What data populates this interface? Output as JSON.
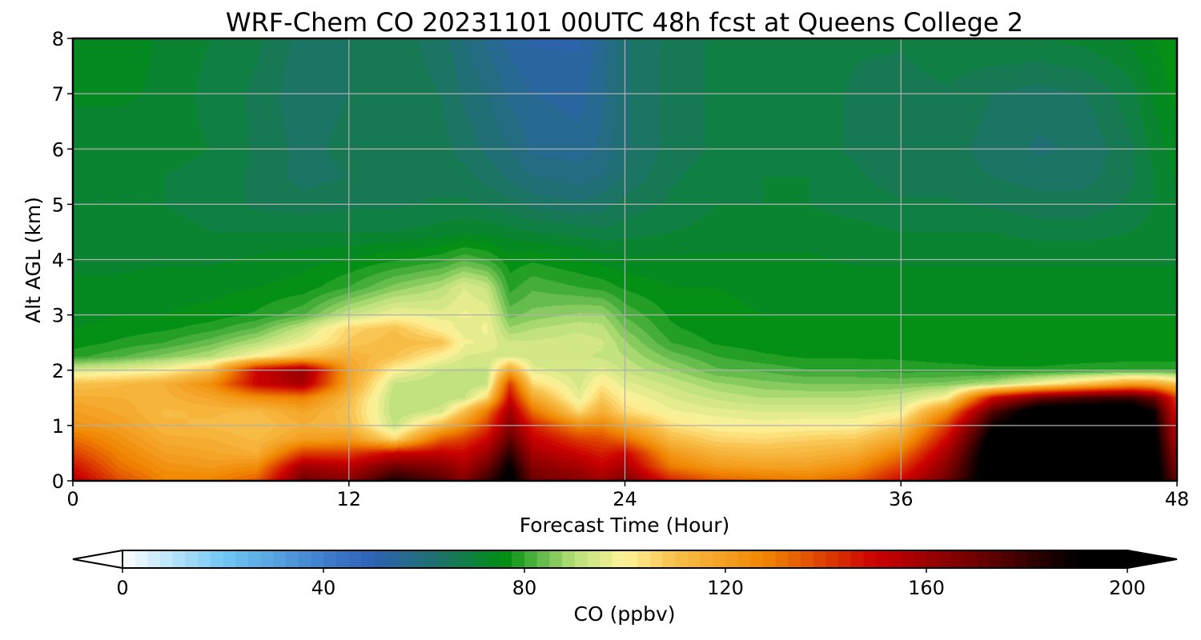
{
  "chart_data": {
    "type": "heatmap",
    "title": "WRF-Chem CO  20231101 00UTC 48h fcst at Queens College 2",
    "xlabel": "Forecast Time (Hour)",
    "ylabel": "Alt AGL (km)",
    "xlim": [
      0,
      48
    ],
    "ylim": [
      0,
      8
    ],
    "x_ticks": [
      "0",
      "12",
      "24",
      "36",
      "48"
    ],
    "y_ticks": [
      "0",
      "1",
      "2",
      "3",
      "4",
      "5",
      "6",
      "7",
      "8"
    ],
    "grid": true,
    "colorbar": {
      "label": "CO  (ppbv)",
      "range": [
        0,
        200
      ],
      "ticks": [
        "0",
        "40",
        "80",
        "120",
        "160",
        "200"
      ],
      "extend": "both",
      "orientation": "horizontal",
      "stops": [
        {
          "value": 0,
          "color": "#ffffff"
        },
        {
          "value": 20,
          "color": "#70c8f4"
        },
        {
          "value": 40,
          "color": "#3f7fcd"
        },
        {
          "value": 50,
          "color": "#2e62b4"
        },
        {
          "value": 62,
          "color": "#1f7070"
        },
        {
          "value": 76,
          "color": "#008f12"
        },
        {
          "value": 90,
          "color": "#b8e07a"
        },
        {
          "value": 100,
          "color": "#fff39a"
        },
        {
          "value": 110,
          "color": "#f8c04a"
        },
        {
          "value": 128,
          "color": "#f08400"
        },
        {
          "value": 150,
          "color": "#cc0000"
        },
        {
          "value": 170,
          "color": "#6e0000"
        },
        {
          "value": 190,
          "color": "#000000"
        },
        {
          "value": 200,
          "color": "#000000"
        }
      ]
    },
    "hours": [
      0,
      2,
      4,
      6,
      8,
      10,
      12,
      14,
      16,
      17,
      18,
      19,
      20,
      22,
      23,
      24,
      26,
      28,
      30,
      32,
      34,
      36,
      38,
      40,
      42,
      44,
      46,
      47,
      48
    ],
    "altitudes_km": [
      0,
      0.25,
      0.5,
      0.75,
      1,
      1.25,
      1.5,
      1.75,
      2,
      2.25,
      2.5,
      2.75,
      3,
      3.5,
      4,
      4.5,
      5,
      5.5,
      6,
      7,
      8
    ],
    "co_ppbv": [
      [
        155,
        138,
        128,
        128,
        135,
        170,
        165,
        185,
        175,
        165,
        180,
        195,
        170,
        165,
        160,
        168,
        145,
        135,
        132,
        130,
        135,
        150,
        170,
        200,
        200,
        200,
        200,
        200,
        170
      ],
      [
        148,
        132,
        124,
        122,
        126,
        160,
        155,
        170,
        165,
        158,
        170,
        190,
        165,
        158,
        152,
        158,
        130,
        122,
        120,
        120,
        125,
        140,
        165,
        200,
        200,
        200,
        200,
        198,
        165
      ],
      [
        140,
        128,
        120,
        118,
        115,
        140,
        140,
        150,
        152,
        150,
        160,
        182,
        158,
        150,
        145,
        150,
        122,
        114,
        112,
        113,
        116,
        130,
        158,
        200,
        200,
        200,
        200,
        196,
        160
      ],
      [
        132,
        124,
        116,
        115,
        112,
        120,
        122,
        105,
        135,
        140,
        150,
        172,
        152,
        140,
        138,
        132,
        112,
        106,
        105,
        107,
        108,
        118,
        150,
        196,
        200,
        200,
        200,
        194,
        155
      ],
      [
        124,
        120,
        113,
        112,
        110,
        115,
        112,
        92,
        112,
        125,
        140,
        165,
        145,
        126,
        128,
        118,
        104,
        100,
        99,
        100,
        100,
        108,
        140,
        188,
        200,
        200,
        200,
        192,
        150
      ],
      [
        120,
        117,
        112,
        113,
        112,
        118,
        110,
        90,
        94,
        110,
        130,
        160,
        132,
        105,
        115,
        105,
        98,
        96,
        95,
        95,
        95,
        98,
        125,
        175,
        200,
        200,
        200,
        188,
        145
      ],
      [
        116,
        115,
        114,
        118,
        125,
        128,
        112,
        90,
        90,
        92,
        105,
        150,
        118,
        96,
        108,
        100,
        95,
        92,
        90,
        90,
        90,
        92,
        100,
        150,
        170,
        178,
        180,
        170,
        140
      ],
      [
        110,
        112,
        115,
        125,
        150,
        158,
        118,
        92,
        90,
        90,
        92,
        140,
        105,
        94,
        102,
        96,
        92,
        88,
        86,
        85,
        85,
        85,
        86,
        90,
        100,
        110,
        120,
        118,
        110
      ],
      [
        94,
        96,
        100,
        110,
        150,
        162,
        120,
        100,
        92,
        92,
        92,
        118,
        96,
        93,
        96,
        92,
        88,
        83,
        82,
        80,
        80,
        79,
        79,
        78,
        78,
        79,
        80,
        80,
        80
      ],
      [
        79,
        82,
        86,
        90,
        100,
        110,
        115,
        110,
        100,
        95,
        94,
        95,
        93,
        93,
        92,
        90,
        84,
        80,
        78,
        77,
        77,
        77,
        76,
        76,
        76,
        76,
        76,
        76,
        76
      ],
      [
        76,
        78,
        80,
        84,
        90,
        98,
        108,
        112,
        110,
        98,
        97,
        93,
        93,
        94,
        93,
        88,
        80,
        77,
        76,
        76,
        76,
        76,
        76,
        76,
        76,
        76,
        76,
        76,
        76
      ],
      [
        75,
        76,
        77,
        79,
        83,
        92,
        106,
        110,
        100,
        96,
        98,
        88,
        90,
        92,
        91,
        85,
        78,
        76,
        76,
        76,
        76,
        76,
        76,
        76,
        76,
        76,
        76,
        76,
        76
      ],
      [
        74,
        75,
        75,
        76,
        78,
        82,
        92,
        98,
        96,
        98,
        97,
        84,
        86,
        88,
        88,
        82,
        77,
        76,
        75,
        75,
        75,
        75,
        75,
        75,
        75,
        75,
        75,
        75,
        75
      ],
      [
        73,
        73,
        74,
        74,
        75,
        76,
        80,
        86,
        90,
        95,
        92,
        79,
        82,
        80,
        79,
        77,
        75,
        75,
        74,
        74,
        74,
        74,
        74,
        74,
        74,
        74,
        74,
        74,
        74
      ],
      [
        72,
        72,
        72,
        72,
        73,
        74,
        75,
        77,
        79,
        82,
        80,
        76,
        77,
        75,
        74,
        73,
        73,
        73,
        73,
        73,
        72,
        72,
        72,
        72,
        72,
        72,
        72,
        72,
        72
      ],
      [
        71,
        71,
        71,
        70,
        70,
        70,
        70,
        70,
        71,
        72,
        72,
        71,
        70,
        69,
        68,
        69,
        70,
        71,
        71,
        71,
        71,
        70,
        70,
        70,
        69,
        69,
        70,
        71,
        72
      ],
      [
        70,
        70,
        70,
        69,
        67,
        66,
        67,
        67,
        68,
        68,
        67,
        66,
        64,
        63,
        64,
        66,
        68,
        70,
        70,
        70,
        69,
        68,
        68,
        67,
        66,
        66,
        68,
        70,
        72
      ],
      [
        70,
        70,
        70,
        69,
        67,
        64,
        65,
        66,
        66,
        66,
        64,
        62,
        60,
        59,
        60,
        63,
        67,
        69,
        70,
        70,
        68,
        66,
        66,
        65,
        64,
        64,
        67,
        70,
        73
      ],
      [
        71,
        71,
        71,
        70,
        67,
        64,
        66,
        66,
        66,
        64,
        62,
        60,
        57,
        56,
        58,
        62,
        66,
        68,
        69,
        69,
        67,
        66,
        66,
        64,
        62,
        63,
        67,
        71,
        74
      ],
      [
        73,
        73,
        72,
        69,
        67,
        63,
        65,
        66,
        65,
        62,
        60,
        57,
        55,
        54,
        57,
        62,
        66,
        68,
        69,
        69,
        67,
        66,
        67,
        65,
        64,
        65,
        69,
        73,
        76
      ],
      [
        74,
        74,
        72,
        70,
        68,
        64,
        65,
        66,
        64,
        60,
        57,
        54,
        52,
        52,
        56,
        62,
        66,
        68,
        70,
        70,
        68,
        68,
        70,
        70,
        70,
        71,
        73,
        75,
        77
      ]
    ]
  }
}
